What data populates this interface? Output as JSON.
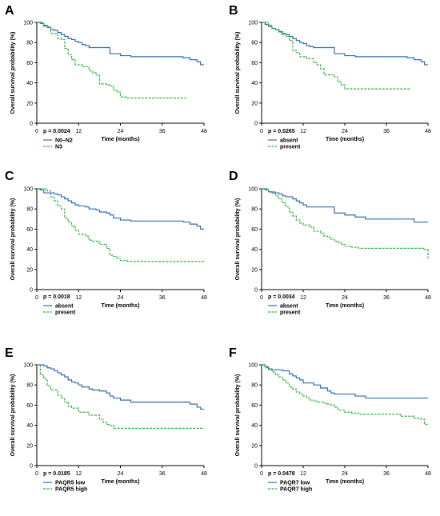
{
  "figure": {
    "colors": {
      "primary": "#2f6db5",
      "secondary": "#2fb23a",
      "axis": "#000000"
    }
  },
  "chart_data": [
    {
      "panel_letter": "A",
      "type": "line",
      "xlabel": "Time (months)",
      "ylabel": "Overall survival probability (%)",
      "xlim": [
        0,
        48
      ],
      "ylim": [
        0,
        100
      ],
      "xticks": [
        0,
        12,
        24,
        36,
        48
      ],
      "yticks": [
        0,
        20,
        40,
        60,
        80,
        100
      ],
      "grid": false,
      "legend_position": "bottom-left",
      "p_value": "p = 0.0024",
      "series": [
        {
          "name": "N0–N2",
          "color": "#2f6db5",
          "dashed": false,
          "x": [
            0,
            1,
            2,
            3,
            4,
            5,
            6,
            7,
            8,
            9,
            10,
            11,
            12,
            13,
            14,
            15,
            18,
            21,
            24,
            27,
            42,
            44,
            46,
            47,
            48
          ],
          "y": [
            100,
            99,
            97,
            95,
            93,
            92,
            90,
            88,
            86,
            84,
            83,
            81,
            80,
            78,
            77,
            75,
            75,
            69,
            67,
            66,
            65,
            63,
            61,
            58,
            58
          ]
        },
        {
          "name": "N3",
          "color": "#2fb23a",
          "dashed": true,
          "x": [
            0,
            2,
            4,
            6,
            7,
            8,
            9,
            10,
            11,
            12,
            13,
            15,
            16,
            17,
            18,
            20,
            21,
            22,
            23,
            24,
            26,
            28,
            43
          ],
          "y": [
            100,
            96,
            89,
            84,
            83,
            74,
            68,
            63,
            58,
            58,
            56,
            52,
            50,
            48,
            39,
            38,
            37,
            33,
            31,
            26,
            25,
            25,
            25
          ]
        }
      ]
    },
    {
      "panel_letter": "B",
      "type": "line",
      "xlabel": "Time (months)",
      "ylabel": "Overall survival probability (%)",
      "xlim": [
        0,
        48
      ],
      "ylim": [
        0,
        100
      ],
      "xticks": [
        0,
        12,
        24,
        36,
        48
      ],
      "yticks": [
        0,
        20,
        40,
        60,
        80,
        100
      ],
      "grid": false,
      "legend_position": "bottom-left",
      "p_value": "p = 0.0265",
      "series": [
        {
          "name": "absent",
          "color": "#2f6db5",
          "dashed": false,
          "x": [
            0,
            1,
            2,
            3,
            4,
            5,
            6,
            7,
            8,
            9,
            10,
            11,
            12,
            13,
            14,
            15,
            18,
            21,
            24,
            27,
            42,
            44,
            46,
            47,
            48
          ],
          "y": [
            100,
            98,
            96,
            94,
            93,
            91,
            89,
            88,
            86,
            84,
            82,
            80,
            79,
            77,
            76,
            75,
            75,
            69,
            67,
            66,
            65,
            63,
            61,
            58,
            58
          ]
        },
        {
          "name": "present",
          "color": "#2fb23a",
          "dashed": true,
          "x": [
            0,
            2,
            3,
            4,
            5,
            6,
            7,
            8,
            9,
            10,
            11,
            12,
            13,
            15,
            16,
            17,
            18,
            20,
            21,
            22,
            23,
            24,
            26,
            43
          ],
          "y": [
            100,
            97,
            94,
            93,
            90,
            88,
            86,
            82,
            72,
            70,
            66,
            66,
            64,
            60,
            58,
            54,
            48,
            48,
            46,
            41,
            38,
            34,
            34,
            34
          ]
        }
      ]
    },
    {
      "panel_letter": "C",
      "type": "line",
      "xlabel": "Time (months)",
      "ylabel": "Overall survival probability (%)",
      "xlim": [
        0,
        48
      ],
      "ylim": [
        0,
        100
      ],
      "xticks": [
        0,
        12,
        24,
        36,
        48
      ],
      "yticks": [
        0,
        20,
        40,
        60,
        80,
        100
      ],
      "grid": false,
      "legend_position": "bottom-left",
      "p_value": "p = 0.0018",
      "series": [
        {
          "name": "absent",
          "color": "#2f6db5",
          "dashed": false,
          "x": [
            0,
            1,
            2,
            5,
            6,
            7,
            8,
            9,
            10,
            11,
            12,
            14,
            15,
            17,
            18,
            20,
            21,
            22,
            24,
            27,
            42,
            44,
            46,
            47,
            48
          ],
          "y": [
            100,
            99,
            96,
            95,
            94,
            92,
            90,
            88,
            86,
            84,
            83,
            82,
            80,
            79,
            77,
            76,
            74,
            71,
            69,
            68,
            67,
            65,
            63,
            60,
            60
          ]
        },
        {
          "name": "present",
          "color": "#2fb23a",
          "dashed": true,
          "x": [
            0,
            3,
            4,
            5,
            6,
            7,
            8,
            9,
            10,
            11,
            12,
            14,
            15,
            16,
            18,
            20,
            21,
            22,
            23,
            24,
            26,
            48
          ],
          "y": [
            100,
            98,
            92,
            88,
            83,
            80,
            71,
            67,
            63,
            59,
            55,
            53,
            49,
            48,
            45,
            41,
            34,
            33,
            31,
            29,
            28,
            28
          ]
        }
      ]
    },
    {
      "panel_letter": "D",
      "type": "line",
      "xlabel": "Time (months)",
      "ylabel": "Overall survival probability (%)",
      "xlim": [
        0,
        48
      ],
      "ylim": [
        0,
        100
      ],
      "xticks": [
        0,
        12,
        24,
        36,
        48
      ],
      "yticks": [
        0,
        20,
        40,
        60,
        80,
        100
      ],
      "grid": false,
      "legend_position": "bottom-left",
      "p_value": "p = 0.0034",
      "series": [
        {
          "name": "absent",
          "color": "#2f6db5",
          "dashed": false,
          "x": [
            0,
            1,
            2,
            3,
            5,
            6,
            7,
            9,
            10,
            11,
            12,
            13,
            15,
            18,
            21,
            24,
            27,
            30,
            42,
            44,
            48
          ],
          "y": [
            100,
            99,
            97,
            96,
            95,
            93,
            92,
            90,
            88,
            86,
            84,
            82,
            82,
            82,
            76,
            74,
            72,
            70,
            70,
            67,
            67
          ]
        },
        {
          "name": "present",
          "color": "#2fb23a",
          "dashed": true,
          "x": [
            0,
            2,
            4,
            5,
            6,
            7,
            8,
            9,
            10,
            11,
            12,
            14,
            15,
            17,
            18,
            19,
            20,
            21,
            22,
            23,
            24,
            26,
            28,
            47,
            48
          ],
          "y": [
            100,
            97,
            93,
            90,
            86,
            82,
            77,
            73,
            69,
            66,
            64,
            62,
            58,
            56,
            53,
            52,
            50,
            48,
            47,
            45,
            43,
            42,
            41,
            40,
            31
          ]
        }
      ]
    },
    {
      "panel_letter": "E",
      "type": "line",
      "xlabel": "Time (months)",
      "ylabel": "Overall survival probability (%)",
      "xlim": [
        0,
        48
      ],
      "ylim": [
        0,
        100
      ],
      "xticks": [
        0,
        12,
        24,
        36,
        48
      ],
      "yticks": [
        0,
        20,
        40,
        60,
        80,
        100
      ],
      "grid": false,
      "legend_position": "bottom-left",
      "p_value": "p = 0.0185",
      "series": [
        {
          "name": "PAQR5 low",
          "color": "#2f6db5",
          "dashed": false,
          "x": [
            0,
            2,
            3,
            4,
            5,
            6,
            7,
            8,
            9,
            10,
            11,
            12,
            13,
            15,
            16,
            18,
            20,
            21,
            22,
            24,
            27,
            42,
            44,
            46,
            47,
            48
          ],
          "y": [
            100,
            99,
            97,
            96,
            94,
            92,
            90,
            88,
            85,
            83,
            82,
            80,
            78,
            76,
            75,
            74,
            72,
            69,
            67,
            65,
            63,
            63,
            61,
            58,
            56,
            56
          ]
        },
        {
          "name": "PAQR5 high",
          "color": "#2fb23a",
          "dashed": true,
          "x": [
            0,
            1,
            2,
            3,
            4,
            6,
            7,
            8,
            9,
            10,
            12,
            15,
            18,
            19,
            20,
            21,
            22,
            48
          ],
          "y": [
            100,
            90,
            86,
            79,
            75,
            70,
            67,
            63,
            59,
            57,
            53,
            50,
            46,
            43,
            41,
            40,
            37,
            37
          ]
        }
      ]
    },
    {
      "panel_letter": "F",
      "type": "line",
      "xlabel": "Time (months)",
      "ylabel": "Overall survival probability (%)",
      "xlim": [
        0,
        48
      ],
      "ylim": [
        0,
        100
      ],
      "xticks": [
        0,
        12,
        24,
        36,
        48
      ],
      "yticks": [
        0,
        20,
        40,
        60,
        80,
        100
      ],
      "grid": false,
      "legend_position": "bottom-left",
      "p_value": "p = 0.0478",
      "series": [
        {
          "name": "PAQR7 low",
          "color": "#2f6db5",
          "dashed": false,
          "x": [
            0,
            1,
            2,
            3,
            6,
            8,
            9,
            10,
            11,
            12,
            13,
            15,
            17,
            19,
            20,
            21,
            22,
            24,
            27,
            30,
            48
          ],
          "y": [
            100,
            98,
            96,
            95,
            94,
            91,
            89,
            87,
            85,
            82,
            82,
            80,
            77,
            74,
            72,
            71,
            71,
            71,
            69,
            67,
            67
          ]
        },
        {
          "name": "PAQR7 high",
          "color": "#2fb23a",
          "dashed": true,
          "x": [
            0,
            1,
            2,
            3,
            4,
            5,
            6,
            7,
            8,
            9,
            10,
            11,
            12,
            13,
            14,
            15,
            16,
            18,
            19,
            20,
            21,
            22,
            24,
            26,
            28,
            30,
            36,
            40,
            44,
            46,
            47,
            48
          ],
          "y": [
            100,
            97,
            95,
            93,
            90,
            88,
            85,
            82,
            78,
            76,
            73,
            71,
            69,
            67,
            65,
            64,
            63,
            62,
            61,
            60,
            58,
            55,
            53,
            52,
            51,
            51,
            51,
            49,
            47,
            46,
            41,
            41
          ]
        }
      ]
    }
  ]
}
